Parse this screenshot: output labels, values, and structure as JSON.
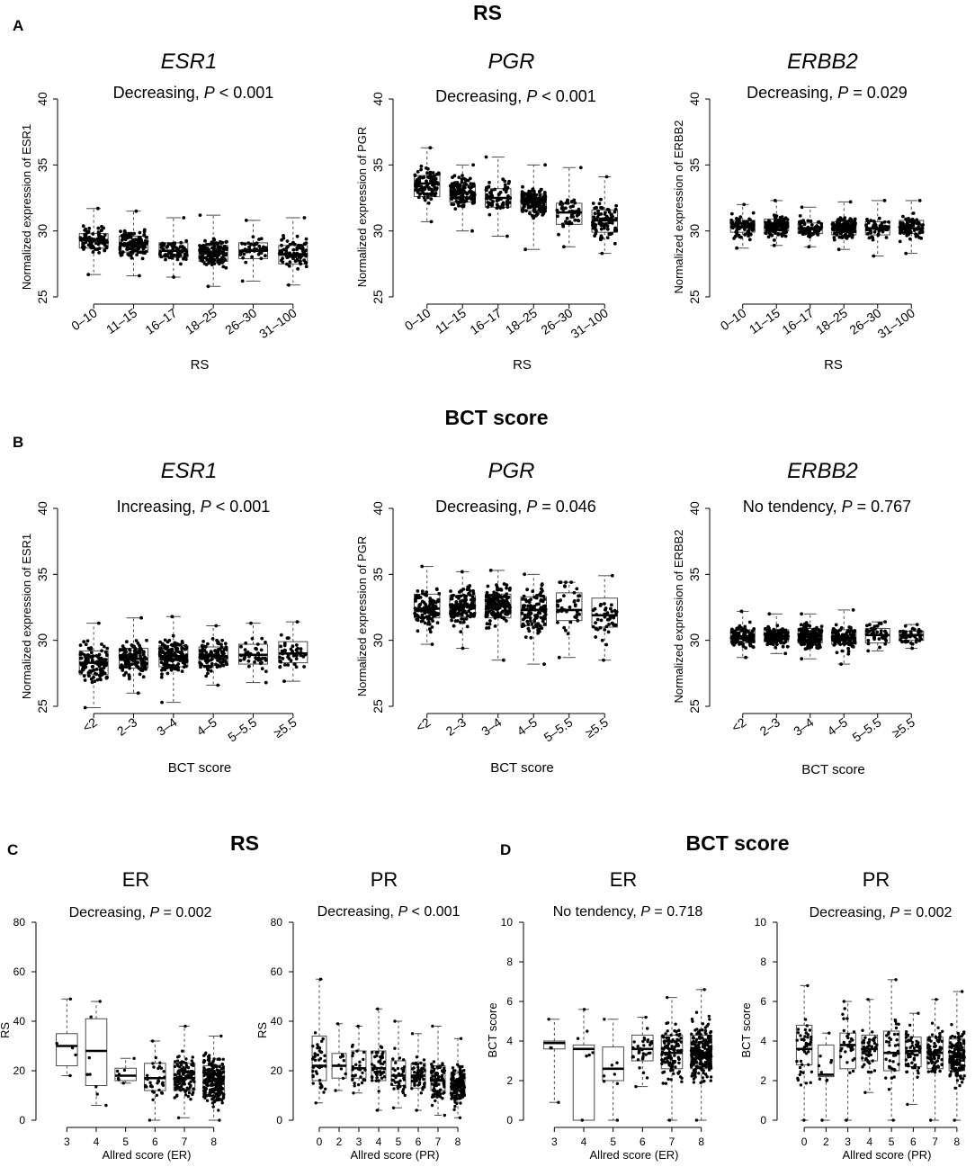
{
  "panel_letters": {
    "a": "A",
    "b": "B",
    "c": "C",
    "d": "D"
  },
  "section_titles": {
    "a": "RS",
    "b": "BCT score",
    "c": "RS",
    "d": "BCT score"
  },
  "colors": {
    "points": "#000000",
    "box_stroke": "#4d4d4d",
    "median": "#000000",
    "axis": "#000000"
  },
  "chart_data": [
    {
      "id": "a1",
      "type": "box",
      "title": "ESR1",
      "annotation": {
        "prefix": "Decreasing, ",
        "p": "P",
        "rest": " < 0.001"
      },
      "xlabel": "RS",
      "ylabel": "Normalized expression of ESR1",
      "ylim": [
        25,
        40
      ],
      "yticks": [
        25,
        30,
        35,
        40
      ],
      "tick_labels_rotated": true,
      "categories": [
        "0–10",
        "11–15",
        "16–17",
        "18–25",
        "26–30",
        "31–100"
      ],
      "boxes": [
        {
          "q1": 28.7,
          "median": 29.3,
          "q3": 29.8,
          "whisker_low": 26.7,
          "whisker_high": 31.7,
          "n": 90
        },
        {
          "q1": 28.4,
          "median": 29.0,
          "q3": 29.6,
          "whisker_low": 26.6,
          "whisker_high": 31.5,
          "n": 130
        },
        {
          "q1": 28.0,
          "median": 28.5,
          "q3": 29.1,
          "whisker_low": 26.5,
          "whisker_high": 31.0,
          "n": 70
        },
        {
          "q1": 27.7,
          "median": 28.3,
          "q3": 28.9,
          "whisker_low": 25.8,
          "whisker_high": 31.2,
          "n": 150
        },
        {
          "q1": 27.9,
          "median": 28.5,
          "q3": 29.1,
          "whisker_low": 26.2,
          "whisker_high": 30.8,
          "n": 50
        },
        {
          "q1": 27.5,
          "median": 28.2,
          "q3": 28.9,
          "whisker_low": 25.9,
          "whisker_high": 31.0,
          "n": 80
        }
      ]
    },
    {
      "id": "a2",
      "type": "box",
      "title": "PGR",
      "annotation": {
        "prefix": "Decreasing, ",
        "p": "P",
        "rest": " < 0.001"
      },
      "xlabel": "RS",
      "ylabel": "Normalized expression of PGR",
      "ylim": [
        25,
        40
      ],
      "yticks": [
        25,
        30,
        35,
        40
      ],
      "tick_labels_rotated": true,
      "categories": [
        "0–10",
        "11–15",
        "16–17",
        "18–25",
        "26–30",
        "31–100"
      ],
      "boxes": [
        {
          "q1": 32.6,
          "median": 33.6,
          "q3": 34.2,
          "whisker_low": 30.7,
          "whisker_high": 36.3,
          "n": 90
        },
        {
          "q1": 32.2,
          "median": 32.9,
          "q3": 33.5,
          "whisker_low": 30.0,
          "whisker_high": 35.0,
          "n": 130
        },
        {
          "q1": 31.8,
          "median": 32.5,
          "q3": 33.2,
          "whisker_low": 29.6,
          "whisker_high": 35.6,
          "n": 70
        },
        {
          "q1": 31.5,
          "median": 32.2,
          "q3": 32.8,
          "whisker_low": 28.6,
          "whisker_high": 35.0,
          "n": 150
        },
        {
          "q1": 30.5,
          "median": 31.4,
          "q3": 32.1,
          "whisker_low": 28.8,
          "whisker_high": 34.8,
          "n": 50
        },
        {
          "q1": 29.9,
          "median": 30.8,
          "q3": 31.6,
          "whisker_low": 28.3,
          "whisker_high": 34.1,
          "n": 80
        }
      ]
    },
    {
      "id": "a3",
      "type": "box",
      "title": "ERBB2",
      "annotation": {
        "prefix": "Decreasing, ",
        "p": "P",
        "rest": " = 0.029"
      },
      "xlabel": "RS",
      "ylabel": "Normalized expression of ERBB2",
      "ylim": [
        25,
        40
      ],
      "yticks": [
        25,
        30,
        35,
        40
      ],
      "tick_labels_rotated": true,
      "categories": [
        "0–10",
        "11–15",
        "16–17",
        "18–25",
        "26–30",
        "31–100"
      ],
      "boxes": [
        {
          "q1": 29.9,
          "median": 30.3,
          "q3": 30.8,
          "whisker_low": 28.7,
          "whisker_high": 32.0,
          "n": 90
        },
        {
          "q1": 30.0,
          "median": 30.4,
          "q3": 30.9,
          "whisker_low": 28.9,
          "whisker_high": 32.3,
          "n": 130
        },
        {
          "q1": 29.8,
          "median": 30.2,
          "q3": 30.6,
          "whisker_low": 28.8,
          "whisker_high": 31.8,
          "n": 70
        },
        {
          "q1": 29.7,
          "median": 30.2,
          "q3": 30.7,
          "whisker_low": 28.6,
          "whisker_high": 32.2,
          "n": 150
        },
        {
          "q1": 29.7,
          "median": 30.2,
          "q3": 30.7,
          "whisker_low": 28.1,
          "whisker_high": 32.3,
          "n": 50
        },
        {
          "q1": 29.8,
          "median": 30.2,
          "q3": 30.8,
          "whisker_low": 28.3,
          "whisker_high": 32.3,
          "n": 80
        }
      ]
    },
    {
      "id": "b1",
      "type": "box",
      "title": "ESR1",
      "annotation": {
        "prefix": "Increasing, ",
        "p": "P",
        "rest": " < 0.001"
      },
      "xlabel": "BCT score",
      "ylabel": "Normalized expression of ESR1",
      "ylim": [
        25,
        40
      ],
      "yticks": [
        25,
        30,
        35,
        40
      ],
      "tick_labels_rotated": true,
      "categories": [
        "<2",
        "2–3",
        "3–4",
        "4–5",
        "5–5.5",
        "≥5.5"
      ],
      "boxes": [
        {
          "q1": 27.4,
          "median": 28.3,
          "q3": 29.2,
          "whisker_low": 24.9,
          "whisker_high": 31.3,
          "n": 110
        },
        {
          "q1": 27.9,
          "median": 28.6,
          "q3": 29.4,
          "whisker_low": 26.0,
          "whisker_high": 31.7,
          "n": 130
        },
        {
          "q1": 28.0,
          "median": 28.8,
          "q3": 29.6,
          "whisker_low": 25.3,
          "whisker_high": 31.8,
          "n": 160
        },
        {
          "q1": 28.1,
          "median": 28.8,
          "q3": 29.5,
          "whisker_low": 26.6,
          "whisker_high": 31.1,
          "n": 110
        },
        {
          "q1": 28.2,
          "median": 28.9,
          "q3": 29.7,
          "whisker_low": 26.8,
          "whisker_high": 31.3,
          "n": 40
        },
        {
          "q1": 28.3,
          "median": 29.0,
          "q3": 29.9,
          "whisker_low": 26.9,
          "whisker_high": 31.4,
          "n": 45
        }
      ]
    },
    {
      "id": "b2",
      "type": "box",
      "title": "PGR",
      "annotation": {
        "prefix": "Decreasing, ",
        "p": "P",
        "rest": " = 0.046"
      },
      "xlabel": "BCT score",
      "ylabel": "Normalized expression of PGR",
      "ylim": [
        25,
        40
      ],
      "yticks": [
        25,
        30,
        35,
        40
      ],
      "tick_labels_rotated": true,
      "categories": [
        "<2",
        "2–3",
        "3–4",
        "4–5",
        "5–5.5",
        "≥5.5"
      ],
      "boxes": [
        {
          "q1": 31.7,
          "median": 32.4,
          "q3": 33.5,
          "whisker_low": 29.7,
          "whisker_high": 35.6,
          "n": 110
        },
        {
          "q1": 31.8,
          "median": 32.6,
          "q3": 33.4,
          "whisker_low": 29.4,
          "whisker_high": 35.2,
          "n": 130
        },
        {
          "q1": 31.7,
          "median": 32.6,
          "q3": 33.5,
          "whisker_low": 28.5,
          "whisker_high": 35.3,
          "n": 160
        },
        {
          "q1": 31.1,
          "median": 32.3,
          "q3": 33.3,
          "whisker_low": 28.2,
          "whisker_high": 35.0,
          "n": 110
        },
        {
          "q1": 31.5,
          "median": 32.3,
          "q3": 33.6,
          "whisker_low": 28.7,
          "whisker_high": 34.4,
          "n": 40
        },
        {
          "q1": 31.0,
          "median": 31.9,
          "q3": 33.2,
          "whisker_low": 28.5,
          "whisker_high": 34.9,
          "n": 45
        }
      ]
    },
    {
      "id": "b3",
      "type": "box",
      "title": "ERBB2",
      "annotation": {
        "prefix": "No tendency, ",
        "p": "P",
        "rest": " = 0.767"
      },
      "xlabel": "BCT score",
      "ylabel": "Normalized expression of ERBB2",
      "ylim": [
        25,
        40
      ],
      "yticks": [
        25,
        30,
        35,
        40
      ],
      "tick_labels_rotated": true,
      "categories": [
        "<2",
        "2–3",
        "3–4",
        "4–5",
        "5–5.5",
        "≥5.5"
      ],
      "boxes": [
        {
          "q1": 29.8,
          "median": 30.3,
          "q3": 30.8,
          "whisker_low": 28.7,
          "whisker_high": 32.2,
          "n": 110
        },
        {
          "q1": 29.9,
          "median": 30.3,
          "q3": 30.8,
          "whisker_low": 29.0,
          "whisker_high": 32.0,
          "n": 130
        },
        {
          "q1": 29.8,
          "median": 30.3,
          "q3": 30.9,
          "whisker_low": 28.6,
          "whisker_high": 32.0,
          "n": 160
        },
        {
          "q1": 29.7,
          "median": 30.2,
          "q3": 30.8,
          "whisker_low": 28.2,
          "whisker_high": 32.3,
          "n": 110
        },
        {
          "q1": 29.8,
          "median": 30.4,
          "q3": 30.9,
          "whisker_low": 29.2,
          "whisker_high": 31.4,
          "n": 40
        },
        {
          "q1": 30.0,
          "median": 30.4,
          "q3": 30.7,
          "whisker_low": 29.4,
          "whisker_high": 31.2,
          "n": 45
        }
      ]
    },
    {
      "id": "c1",
      "type": "box",
      "title": "ER",
      "annotation": {
        "prefix": "Decreasing, ",
        "p": "P",
        "rest": " = 0.002"
      },
      "xlabel": "Allred score (ER)",
      "ylabel": "RS",
      "ylim": [
        0,
        80
      ],
      "yticks": [
        0,
        20,
        40,
        60,
        80
      ],
      "tick_labels_rotated": false,
      "categories": [
        "3",
        "4",
        "5",
        "6",
        "7",
        "8"
      ],
      "boxes": [
        {
          "q1": 22,
          "median": 30,
          "q3": 35,
          "whisker_low": 18,
          "whisker_high": 49,
          "n": 5
        },
        {
          "q1": 14,
          "median": 28,
          "q3": 41,
          "whisker_low": 6,
          "whisker_high": 48,
          "n": 8
        },
        {
          "q1": 16,
          "median": 18,
          "q3": 21,
          "whisker_low": 15,
          "whisker_high": 25,
          "n": 8
        },
        {
          "q1": 12,
          "median": 17,
          "q3": 23,
          "whisker_low": 0,
          "whisker_high": 32,
          "n": 35
        },
        {
          "q1": 12,
          "median": 17,
          "q3": 23,
          "whisker_low": 1,
          "whisker_high": 38,
          "n": 120
        },
        {
          "q1": 11,
          "median": 16,
          "q3": 22,
          "whisker_low": 0,
          "whisker_high": 34,
          "n": 250
        }
      ]
    },
    {
      "id": "c2",
      "type": "box",
      "title": "PR",
      "annotation": {
        "prefix": "Decreasing, ",
        "p": "P",
        "rest": " < 0.001"
      },
      "xlabel": "Allred score (PR)",
      "ylabel": "RS",
      "ylim": [
        0,
        80
      ],
      "yticks": [
        0,
        20,
        40,
        60,
        80
      ],
      "tick_labels_rotated": false,
      "categories": [
        "0",
        "2",
        "3",
        "4",
        "5",
        "6",
        "7",
        "8"
      ],
      "boxes": [
        {
          "q1": 16,
          "median": 22,
          "q3": 34,
          "whisker_low": 7,
          "whisker_high": 57,
          "n": 45
        },
        {
          "q1": 17,
          "median": 22,
          "q3": 27,
          "whisker_low": 12,
          "whisker_high": 39,
          "n": 10
        },
        {
          "q1": 17,
          "median": 21,
          "q3": 28,
          "whisker_low": 11,
          "whisker_high": 38,
          "n": 30
        },
        {
          "q1": 16,
          "median": 21,
          "q3": 28,
          "whisker_low": 4,
          "whisker_high": 45,
          "n": 50
        },
        {
          "q1": 14,
          "median": 18,
          "q3": 24,
          "whisker_low": 5,
          "whisker_high": 40,
          "n": 40
        },
        {
          "q1": 13,
          "median": 18,
          "q3": 23,
          "whisker_low": 4,
          "whisker_high": 35,
          "n": 60
        },
        {
          "q1": 12,
          "median": 16,
          "q3": 22,
          "whisker_low": 2,
          "whisker_high": 38,
          "n": 90
        },
        {
          "q1": 10,
          "median": 14,
          "q3": 19,
          "whisker_low": 1,
          "whisker_high": 33,
          "n": 150
        }
      ]
    },
    {
      "id": "d1",
      "type": "box",
      "title": "ER",
      "annotation": {
        "prefix": "No tendency, ",
        "p": "P",
        "rest": " = 0.718"
      },
      "xlabel": "Allred score (ER)",
      "ylabel": "BCT score",
      "ylim": [
        0,
        10
      ],
      "yticks": [
        0,
        2,
        4,
        6,
        8,
        10
      ],
      "tick_labels_rotated": false,
      "categories": [
        "3",
        "4",
        "5",
        "6",
        "7",
        "8"
      ],
      "boxes": [
        {
          "q1": 3.6,
          "median": 3.9,
          "q3": 4.0,
          "whisker_low": 0.9,
          "whisker_high": 5.1,
          "n": 4
        },
        {
          "q1": 0.0,
          "median": 3.6,
          "q3": 3.8,
          "whisker_low": 0.0,
          "whisker_high": 5.6,
          "n": 7
        },
        {
          "q1": 2.0,
          "median": 2.6,
          "q3": 3.7,
          "whisker_low": 0.0,
          "whisker_high": 5.1,
          "n": 8
        },
        {
          "q1": 3.0,
          "median": 3.6,
          "q3": 4.3,
          "whisker_low": 1.7,
          "whisker_high": 5.2,
          "n": 35
        },
        {
          "q1": 2.6,
          "median": 3.4,
          "q3": 4.3,
          "whisker_low": 0.0,
          "whisker_high": 6.2,
          "n": 120
        },
        {
          "q1": 2.6,
          "median": 3.4,
          "q3": 4.3,
          "whisker_low": 0.0,
          "whisker_high": 6.6,
          "n": 250
        }
      ]
    },
    {
      "id": "d2",
      "type": "box",
      "title": "PR",
      "annotation": {
        "prefix": "Decreasing, ",
        "p": "P",
        "rest": " = 0.002"
      },
      "xlabel": "Allred score (PR)",
      "ylabel": "BCT score",
      "ylim": [
        0,
        10
      ],
      "yticks": [
        0,
        2,
        4,
        6,
        8,
        10
      ],
      "tick_labels_rotated": false,
      "categories": [
        "0",
        "2",
        "3",
        "4",
        "5",
        "6",
        "7",
        "8"
      ],
      "boxes": [
        {
          "q1": 2.8,
          "median": 3.6,
          "q3": 4.8,
          "whisker_low": 0.0,
          "whisker_high": 6.8,
          "n": 45
        },
        {
          "q1": 2.2,
          "median": 2.3,
          "q3": 3.8,
          "whisker_low": 0.0,
          "whisker_high": 4.4,
          "n": 10
        },
        {
          "q1": 2.6,
          "median": 3.8,
          "q3": 4.4,
          "whisker_low": 0.0,
          "whisker_high": 6.0,
          "n": 30
        },
        {
          "q1": 3.0,
          "median": 3.6,
          "q3": 4.3,
          "whisker_low": 1.4,
          "whisker_high": 6.1,
          "n": 50
        },
        {
          "q1": 2.5,
          "median": 3.4,
          "q3": 4.5,
          "whisker_low": 0.0,
          "whisker_high": 7.1,
          "n": 40
        },
        {
          "q1": 2.7,
          "median": 3.5,
          "q3": 4.2,
          "whisker_low": 0.8,
          "whisker_high": 5.4,
          "n": 60
        },
        {
          "q1": 2.6,
          "median": 3.4,
          "q3": 4.2,
          "whisker_low": 0.0,
          "whisker_high": 6.1,
          "n": 90
        },
        {
          "q1": 2.5,
          "median": 3.2,
          "q3": 4.1,
          "whisker_low": 0.0,
          "whisker_high": 6.5,
          "n": 150
        }
      ]
    }
  ]
}
